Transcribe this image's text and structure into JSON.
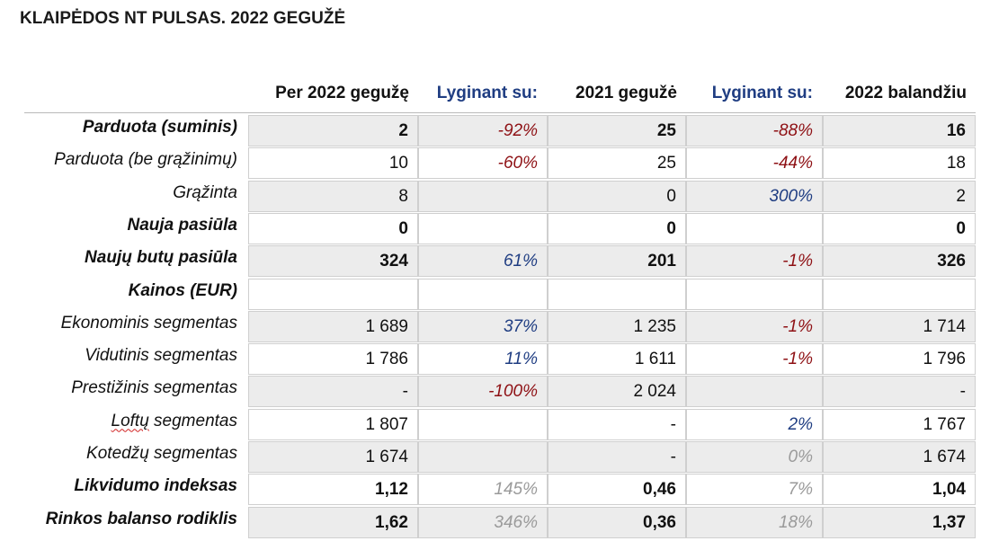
{
  "title": "KLAIPĖDOS NT PULSAS. 2022 GEGUŽĖ",
  "columns": [
    "Per 2022 gegužę",
    "Lyginant su:",
    "2021 gegužė",
    "Lyginant su:",
    "2022 balandžiu"
  ],
  "colors": {
    "red": "#8e1014",
    "blue": "#1f3d82",
    "gray": "#9a9a9a",
    "shade": "#ececec"
  },
  "rows": [
    {
      "label": "Parduota (suminis)",
      "bold": true,
      "shaded": true,
      "values": [
        "2",
        "-92%",
        "25",
        "-88%",
        "16"
      ],
      "pct_colors": [
        "red",
        "red"
      ]
    },
    {
      "label": "Parduota (be grąžinimų)",
      "bold": false,
      "shaded": false,
      "values": [
        "10",
        "-60%",
        "25",
        "-44%",
        "18"
      ],
      "pct_colors": [
        "red",
        "red"
      ]
    },
    {
      "label": "Grąžinta",
      "bold": false,
      "shaded": true,
      "values": [
        "8",
        "",
        "0",
        "300%",
        "2"
      ],
      "pct_colors": [
        "blue",
        "blue"
      ]
    },
    {
      "label": "Nauja pasiūla",
      "bold": true,
      "shaded": false,
      "values": [
        "0",
        "",
        "0",
        "",
        "0"
      ],
      "pct_colors": [
        "blue",
        "blue"
      ]
    },
    {
      "label": "Naujų butų pasiūla",
      "bold": true,
      "shaded": true,
      "values": [
        "324",
        "61%",
        "201",
        "-1%",
        "326"
      ],
      "pct_colors": [
        "blue",
        "red"
      ]
    },
    {
      "label": "Kainos (EUR)",
      "bold": true,
      "shaded": false,
      "values": [
        "",
        "",
        "",
        "",
        ""
      ],
      "pct_colors": [
        "blue",
        "blue"
      ]
    },
    {
      "label": "Ekonominis segmentas",
      "bold": false,
      "shaded": true,
      "values": [
        "1 689",
        "37%",
        "1 235",
        "-1%",
        "1 714"
      ],
      "pct_colors": [
        "blue",
        "red"
      ]
    },
    {
      "label": "Vidutinis segmentas",
      "bold": false,
      "shaded": false,
      "values": [
        "1 786",
        "11%",
        "1 611",
        "-1%",
        "1 796"
      ],
      "pct_colors": [
        "blue",
        "red"
      ]
    },
    {
      "label": "Prestižinis segmentas",
      "bold": false,
      "shaded": true,
      "values": [
        "-",
        "-100%",
        "2 024",
        "",
        "-"
      ],
      "pct_colors": [
        "red",
        "red"
      ]
    },
    {
      "label": "Loftų segmentas",
      "bold": false,
      "shaded": false,
      "values": [
        "1 807",
        "",
        "-",
        "2%",
        "1 767"
      ],
      "pct_colors": [
        "blue",
        "blue"
      ],
      "squiggle": true
    },
    {
      "label": "Kotedžų segmentas",
      "bold": false,
      "shaded": true,
      "values": [
        "1 674",
        "",
        "-",
        "0%",
        "1 674"
      ],
      "pct_colors": [
        "gray",
        "gray"
      ]
    },
    {
      "label": "Likvidumo indeksas",
      "bold": true,
      "shaded": false,
      "values": [
        "1,12",
        "145%",
        "0,46",
        "7%",
        "1,04"
      ],
      "pct_colors": [
        "gray",
        "gray"
      ]
    },
    {
      "label": "Rinkos balanso rodiklis",
      "bold": true,
      "shaded": true,
      "values": [
        "1,62",
        "346%",
        "0,36",
        "18%",
        "1,37"
      ],
      "pct_colors": [
        "gray",
        "gray"
      ]
    }
  ]
}
